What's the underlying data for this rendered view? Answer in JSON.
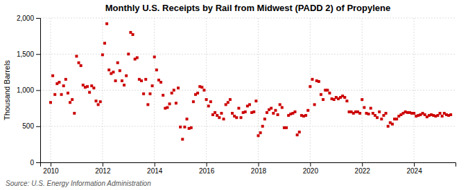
{
  "chart_data": {
    "type": "scatter",
    "title": "Monthly U.S. Receipts by Rail from Midwest (PADD 2) of Propylene",
    "ylabel": "Thousand Barrels",
    "source": "Source: U.S. Energy Information Administration",
    "color": "#cc0000",
    "marker": "square",
    "grid": true,
    "xlim": [
      2009.6,
      2025.6
    ],
    "xticks": [
      2010,
      2012,
      2014,
      2016,
      2018,
      2020,
      2022,
      2024
    ],
    "ylim": [
      0,
      2000
    ],
    "yticks": [
      0,
      500,
      {
        "value": 1000,
        "label": "1,000"
      },
      {
        "value": 1500,
        "label": "1,500"
      },
      {
        "value": 2000,
        "label": "2,000"
      }
    ],
    "x": [
      2010,
      2010.083333,
      2010.166667,
      2010.25,
      2010.333333,
      2010.416667,
      2010.5,
      2010.583333,
      2010.666667,
      2010.75,
      2010.833333,
      2010.916667,
      2011,
      2011.083333,
      2011.166667,
      2011.25,
      2011.333333,
      2011.416667,
      2011.5,
      2011.583333,
      2011.666667,
      2011.75,
      2011.833333,
      2011.916667,
      2012,
      2012.083333,
      2012.166667,
      2012.25,
      2012.333333,
      2012.416667,
      2012.5,
      2012.583333,
      2012.666667,
      2012.75,
      2012.833333,
      2012.916667,
      2013,
      2013.083333,
      2013.166667,
      2013.25,
      2013.333333,
      2013.416667,
      2013.5,
      2013.583333,
      2013.666667,
      2013.75,
      2013.833333,
      2013.916667,
      2014,
      2014.083333,
      2014.166667,
      2014.25,
      2014.333333,
      2014.416667,
      2014.5,
      2014.583333,
      2014.666667,
      2014.75,
      2014.833333,
      2014.916667,
      2015,
      2015.083333,
      2015.166667,
      2015.25,
      2015.333333,
      2015.416667,
      2015.5,
      2015.583333,
      2015.666667,
      2015.75,
      2015.833333,
      2015.916667,
      2016,
      2016.083333,
      2016.166667,
      2016.25,
      2016.333333,
      2016.416667,
      2016.5,
      2016.583333,
      2016.666667,
      2016.75,
      2016.833333,
      2016.916667,
      2017,
      2017.083333,
      2017.166667,
      2017.25,
      2017.333333,
      2017.416667,
      2017.5,
      2017.583333,
      2017.666667,
      2017.75,
      2017.833333,
      2017.916667,
      2018,
      2018.083333,
      2018.166667,
      2018.25,
      2018.333333,
      2018.416667,
      2018.5,
      2018.583333,
      2018.666667,
      2018.75,
      2018.833333,
      2018.916667,
      2019,
      2019.083333,
      2019.166667,
      2019.25,
      2019.333333,
      2019.416667,
      2019.5,
      2019.583333,
      2019.666667,
      2019.75,
      2019.833333,
      2019.916667,
      2020,
      2020.083333,
      2020.166667,
      2020.25,
      2020.333333,
      2020.416667,
      2020.5,
      2020.583333,
      2020.666667,
      2020.75,
      2020.833333,
      2020.916667,
      2021,
      2021.083333,
      2021.166667,
      2021.25,
      2021.333333,
      2021.416667,
      2021.5,
      2021.583333,
      2021.666667,
      2021.75,
      2021.833333,
      2021.916667,
      2022,
      2022.083333,
      2022.166667,
      2022.25,
      2022.333333,
      2022.416667,
      2022.5,
      2022.583333,
      2022.666667,
      2022.75,
      2022.833333,
      2022.916667,
      2023,
      2023.083333,
      2023.166667,
      2023.25,
      2023.333333,
      2023.416667,
      2023.5,
      2023.583333,
      2023.666667,
      2023.75,
      2023.833333,
      2023.916667,
      2024,
      2024.083333,
      2024.166667,
      2024.25,
      2024.333333,
      2024.416667,
      2024.5,
      2024.583333,
      2024.666667,
      2024.75,
      2024.833333,
      2024.916667,
      2025,
      2025.083333,
      2025.166667,
      2025.25,
      2025.333333,
      2025.416667
    ],
    "values": [
      830,
      1200,
      940,
      1090,
      1110,
      940,
      1060,
      1150,
      960,
      830,
      870,
      680,
      1470,
      1380,
      1340,
      1070,
      1040,
      1050,
      970,
      1060,
      1030,
      850,
      800,
      840,
      1490,
      1650,
      1920,
      1280,
      1230,
      1250,
      1130,
      1380,
      1270,
      1130,
      1070,
      1200,
      1500,
      1800,
      1770,
      1430,
      1450,
      1150,
      1130,
      950,
      1150,
      800,
      950,
      1060,
      1460,
      1280,
      1140,
      1110,
      930,
      750,
      760,
      810,
      960,
      1000,
      820,
      1030,
      490,
      320,
      490,
      600,
      470,
      480,
      840,
      940,
      960,
      1050,
      1040,
      1000,
      870,
      780,
      840,
      660,
      690,
      650,
      620,
      680,
      600,
      800,
      830,
      870,
      680,
      640,
      620,
      750,
      620,
      690,
      700,
      780,
      800,
      690,
      700,
      850,
      370,
      410,
      500,
      600,
      690,
      730,
      750,
      680,
      720,
      660,
      800,
      760,
      480,
      480,
      650,
      670,
      680,
      700,
      380,
      420,
      650,
      640,
      650,
      720,
      1050,
      1150,
      800,
      1130,
      1120,
      940,
      870,
      1000,
      1000,
      960,
      880,
      870,
      900,
      880,
      900,
      920,
      900,
      850,
      700,
      700,
      680,
      700,
      700,
      680,
      870,
      760,
      680,
      670,
      750,
      680,
      650,
      620,
      700,
      600,
      650,
      680,
      500,
      550,
      530,
      600,
      600,
      640,
      660,
      680,
      700,
      690,
      690,
      680,
      680,
      640,
      650,
      660,
      680,
      660,
      630,
      650,
      660,
      650,
      640,
      650,
      680,
      640,
      680,
      660,
      650,
      660
    ]
  }
}
